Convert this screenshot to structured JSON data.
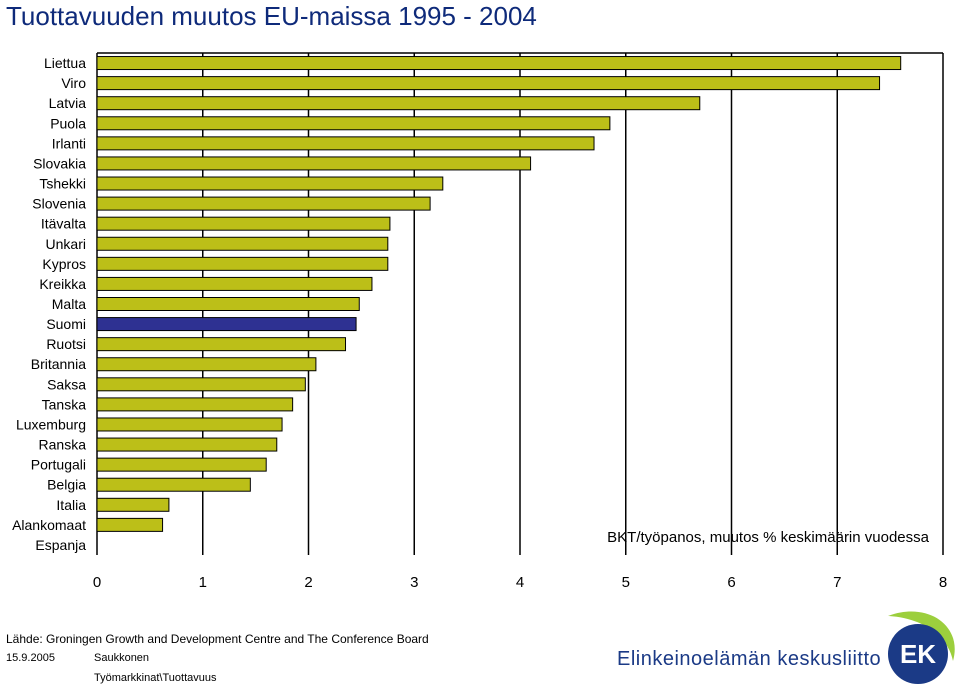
{
  "title": "Tuottavuuden muutos EU-maissa 1995 - 2004",
  "colors": {
    "bar": "#bcbf18",
    "highlight": "#2e3192",
    "title": "#0e2a7a",
    "brand": "#1b3a86",
    "logo_green": "#9ccf3d"
  },
  "chart_data": {
    "type": "bar",
    "orientation": "horizontal",
    "categories": [
      "Liettua",
      "Viro",
      "Latvia",
      "Puola",
      "Irlanti",
      "Slovakia",
      "Tshekki",
      "Slovenia",
      "Itävalta",
      "Unkari",
      "Kypros",
      "Kreikka",
      "Malta",
      "Suomi",
      "Ruotsi",
      "Britannia",
      "Saksa",
      "Tanska",
      "Luxemburg",
      "Ranska",
      "Portugali",
      "Belgia",
      "Italia",
      "Alankomaat",
      "Espanja"
    ],
    "values": [
      7.6,
      7.4,
      5.7,
      4.85,
      4.7,
      4.1,
      3.27,
      3.15,
      2.77,
      2.75,
      2.75,
      2.6,
      2.48,
      2.45,
      2.35,
      2.07,
      1.97,
      1.85,
      1.75,
      1.7,
      1.6,
      1.45,
      0.68,
      0.62,
      0.0
    ],
    "highlight_category": "Suomi",
    "xlim": [
      0,
      8
    ],
    "xticks": [
      "0",
      "1",
      "2",
      "3",
      "4",
      "5",
      "6",
      "7",
      "8"
    ],
    "annotation": "BKT/työpanos, muutos % keskimäärin vuodessa",
    "grid": "vertical"
  },
  "footer": {
    "source": "Lähde: Groningen Growth and Development Centre and The Conference Board",
    "date": "15.9.2005",
    "author": "Saukkonen",
    "path": "Työmarkkinat\\Tuottavuus",
    "brand": "Elinkeinoelämän keskusliitto",
    "logo_text": "EK"
  }
}
